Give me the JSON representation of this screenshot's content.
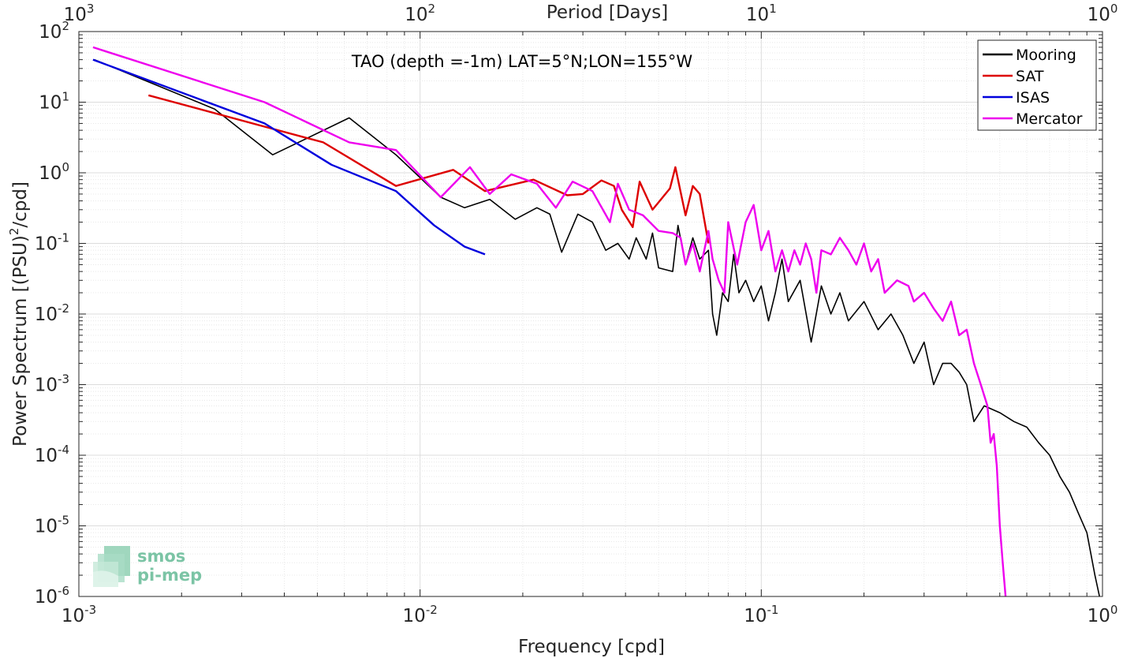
{
  "chart_data": {
    "type": "line",
    "title": "TAO (depth =-1m) LAT=5°N;LON=155°W",
    "xlabel": "Frequency [cpd]",
    "ylabel": "Power Spectrum [(PSU)",
    "ylabel_sup": "2",
    "ylabel_tail": "/cpd]",
    "top_xlabel": "Period [Days]",
    "xscale": "log",
    "yscale": "log",
    "xlim": [
      0.001,
      1
    ],
    "ylim": [
      1e-06,
      100
    ],
    "grid": true,
    "legend_position": "top-right",
    "x_ticks": [
      {
        "value": 0.001,
        "base": "10",
        "exp": "-3"
      },
      {
        "value": 0.01,
        "base": "10",
        "exp": "-2"
      },
      {
        "value": 0.1,
        "base": "10",
        "exp": "-1"
      },
      {
        "value": 1,
        "base": "10",
        "exp": "0"
      }
    ],
    "top_ticks": [
      {
        "value": 0.001,
        "base": "10",
        "exp": "3"
      },
      {
        "value": 0.01,
        "base": "10",
        "exp": "2"
      },
      {
        "value": 0.1,
        "base": "10",
        "exp": "1"
      },
      {
        "value": 1,
        "base": "10",
        "exp": "0"
      }
    ],
    "y_ticks": [
      {
        "value": 1e-06,
        "base": "10",
        "exp": "-6"
      },
      {
        "value": 1e-05,
        "base": "10",
        "exp": "-5"
      },
      {
        "value": 0.0001,
        "base": "10",
        "exp": "-4"
      },
      {
        "value": 0.001,
        "base": "10",
        "exp": "-3"
      },
      {
        "value": 0.01,
        "base": "10",
        "exp": "-2"
      },
      {
        "value": 0.1,
        "base": "10",
        "exp": "-1"
      },
      {
        "value": 1,
        "base": "10",
        "exp": "0"
      },
      {
        "value": 10,
        "base": "10",
        "exp": "1"
      },
      {
        "value": 100,
        "base": "10",
        "exp": "2"
      }
    ],
    "series": [
      {
        "name": "Mooring",
        "color": "#000000",
        "points": [
          [
            0.00111,
            40
          ],
          [
            0.0025,
            8
          ],
          [
            0.0037,
            1.8
          ],
          [
            0.0062,
            6
          ],
          [
            0.0085,
            1.8
          ],
          [
            0.0115,
            0.45
          ],
          [
            0.0135,
            0.32
          ],
          [
            0.016,
            0.42
          ],
          [
            0.019,
            0.22
          ],
          [
            0.022,
            0.32
          ],
          [
            0.024,
            0.26
          ],
          [
            0.026,
            0.075
          ],
          [
            0.029,
            0.26
          ],
          [
            0.032,
            0.2
          ],
          [
            0.035,
            0.08
          ],
          [
            0.038,
            0.1
          ],
          [
            0.041,
            0.06
          ],
          [
            0.043,
            0.12
          ],
          [
            0.046,
            0.06
          ],
          [
            0.048,
            0.14
          ],
          [
            0.05,
            0.045
          ],
          [
            0.055,
            0.04
          ],
          [
            0.057,
            0.18
          ],
          [
            0.06,
            0.05
          ],
          [
            0.063,
            0.12
          ],
          [
            0.066,
            0.06
          ],
          [
            0.07,
            0.08
          ],
          [
            0.072,
            0.01
          ],
          [
            0.074,
            0.005
          ],
          [
            0.077,
            0.02
          ],
          [
            0.08,
            0.015
          ],
          [
            0.083,
            0.07
          ],
          [
            0.086,
            0.02
          ],
          [
            0.09,
            0.03
          ],
          [
            0.095,
            0.015
          ],
          [
            0.1,
            0.025
          ],
          [
            0.105,
            0.008
          ],
          [
            0.11,
            0.02
          ],
          [
            0.115,
            0.06
          ],
          [
            0.12,
            0.015
          ],
          [
            0.13,
            0.03
          ],
          [
            0.14,
            0.004
          ],
          [
            0.15,
            0.025
          ],
          [
            0.16,
            0.01
          ],
          [
            0.17,
            0.02
          ],
          [
            0.18,
            0.008
          ],
          [
            0.2,
            0.015
          ],
          [
            0.22,
            0.006
          ],
          [
            0.24,
            0.01
          ],
          [
            0.26,
            0.005
          ],
          [
            0.28,
            0.002
          ],
          [
            0.3,
            0.004
          ],
          [
            0.32,
            0.001
          ],
          [
            0.34,
            0.002
          ],
          [
            0.36,
            0.002
          ],
          [
            0.38,
            0.0015
          ],
          [
            0.4,
            0.001
          ],
          [
            0.42,
            0.0003
          ],
          [
            0.45,
            0.0005
          ],
          [
            0.5,
            0.0004
          ],
          [
            0.55,
            0.0003
          ],
          [
            0.6,
            0.00025
          ],
          [
            0.65,
            0.00015
          ],
          [
            0.7,
            0.0001
          ],
          [
            0.75,
            5e-05
          ],
          [
            0.8,
            3e-05
          ],
          [
            0.85,
            1.5e-05
          ],
          [
            0.9,
            8e-06
          ],
          [
            0.95,
            2e-06
          ],
          [
            0.98,
            1e-06
          ]
        ]
      },
      {
        "name": "SAT",
        "color": "#dd0000",
        "points": [
          [
            0.0016,
            12.5
          ],
          [
            0.0035,
            4.5
          ],
          [
            0.0052,
            2.7
          ],
          [
            0.0085,
            0.65
          ],
          [
            0.0125,
            1.1
          ],
          [
            0.0155,
            0.55
          ],
          [
            0.0215,
            0.8
          ],
          [
            0.027,
            0.48
          ],
          [
            0.03,
            0.5
          ],
          [
            0.034,
            0.78
          ],
          [
            0.037,
            0.65
          ],
          [
            0.039,
            0.3
          ],
          [
            0.042,
            0.17
          ],
          [
            0.044,
            0.75
          ],
          [
            0.048,
            0.3
          ],
          [
            0.054,
            0.6
          ],
          [
            0.056,
            1.2
          ],
          [
            0.06,
            0.25
          ],
          [
            0.063,
            0.65
          ],
          [
            0.066,
            0.5
          ],
          [
            0.07,
            0.1
          ]
        ]
      },
      {
        "name": "ISAS",
        "color": "#0000dd",
        "points": [
          [
            0.0011,
            40
          ],
          [
            0.0035,
            5
          ],
          [
            0.0055,
            1.3
          ],
          [
            0.0085,
            0.55
          ],
          [
            0.011,
            0.18
          ],
          [
            0.0135,
            0.09
          ],
          [
            0.0155,
            0.07
          ]
        ]
      },
      {
        "name": "Mercator",
        "color": "#ee00ee",
        "points": [
          [
            0.0011,
            60
          ],
          [
            0.0035,
            10
          ],
          [
            0.0062,
            2.7
          ],
          [
            0.0085,
            2.1
          ],
          [
            0.0115,
            0.45
          ],
          [
            0.014,
            1.2
          ],
          [
            0.016,
            0.5
          ],
          [
            0.0185,
            0.95
          ],
          [
            0.022,
            0.7
          ],
          [
            0.025,
            0.32
          ],
          [
            0.028,
            0.75
          ],
          [
            0.032,
            0.55
          ],
          [
            0.036,
            0.2
          ],
          [
            0.038,
            0.7
          ],
          [
            0.041,
            0.3
          ],
          [
            0.045,
            0.25
          ],
          [
            0.05,
            0.15
          ],
          [
            0.055,
            0.14
          ],
          [
            0.058,
            0.12
          ],
          [
            0.06,
            0.05
          ],
          [
            0.063,
            0.1
          ],
          [
            0.066,
            0.04
          ],
          [
            0.07,
            0.15
          ],
          [
            0.072,
            0.06
          ],
          [
            0.075,
            0.03
          ],
          [
            0.078,
            0.02
          ],
          [
            0.08,
            0.2
          ],
          [
            0.085,
            0.05
          ],
          [
            0.09,
            0.2
          ],
          [
            0.095,
            0.35
          ],
          [
            0.1,
            0.08
          ],
          [
            0.105,
            0.15
          ],
          [
            0.11,
            0.04
          ],
          [
            0.115,
            0.08
          ],
          [
            0.12,
            0.04
          ],
          [
            0.125,
            0.08
          ],
          [
            0.13,
            0.05
          ],
          [
            0.135,
            0.1
          ],
          [
            0.14,
            0.06
          ],
          [
            0.145,
            0.02
          ],
          [
            0.15,
            0.08
          ],
          [
            0.16,
            0.07
          ],
          [
            0.17,
            0.12
          ],
          [
            0.18,
            0.08
          ],
          [
            0.19,
            0.05
          ],
          [
            0.2,
            0.1
          ],
          [
            0.21,
            0.04
          ],
          [
            0.22,
            0.06
          ],
          [
            0.23,
            0.02
          ],
          [
            0.25,
            0.03
          ],
          [
            0.27,
            0.025
          ],
          [
            0.28,
            0.015
          ],
          [
            0.3,
            0.02
          ],
          [
            0.32,
            0.012
          ],
          [
            0.34,
            0.008
          ],
          [
            0.36,
            0.015
          ],
          [
            0.38,
            0.005
          ],
          [
            0.4,
            0.006
          ],
          [
            0.42,
            0.002
          ],
          [
            0.44,
            0.001
          ],
          [
            0.46,
            0.0005
          ],
          [
            0.47,
            0.00015
          ],
          [
            0.48,
            0.0002
          ],
          [
            0.49,
            7e-05
          ],
          [
            0.5,
            1e-05
          ],
          [
            0.51,
            3e-06
          ],
          [
            0.52,
            1e-06
          ]
        ]
      }
    ]
  },
  "watermark": {
    "line1": "smos",
    "line2": "pi-mep",
    "color": "#7bc4a5"
  }
}
